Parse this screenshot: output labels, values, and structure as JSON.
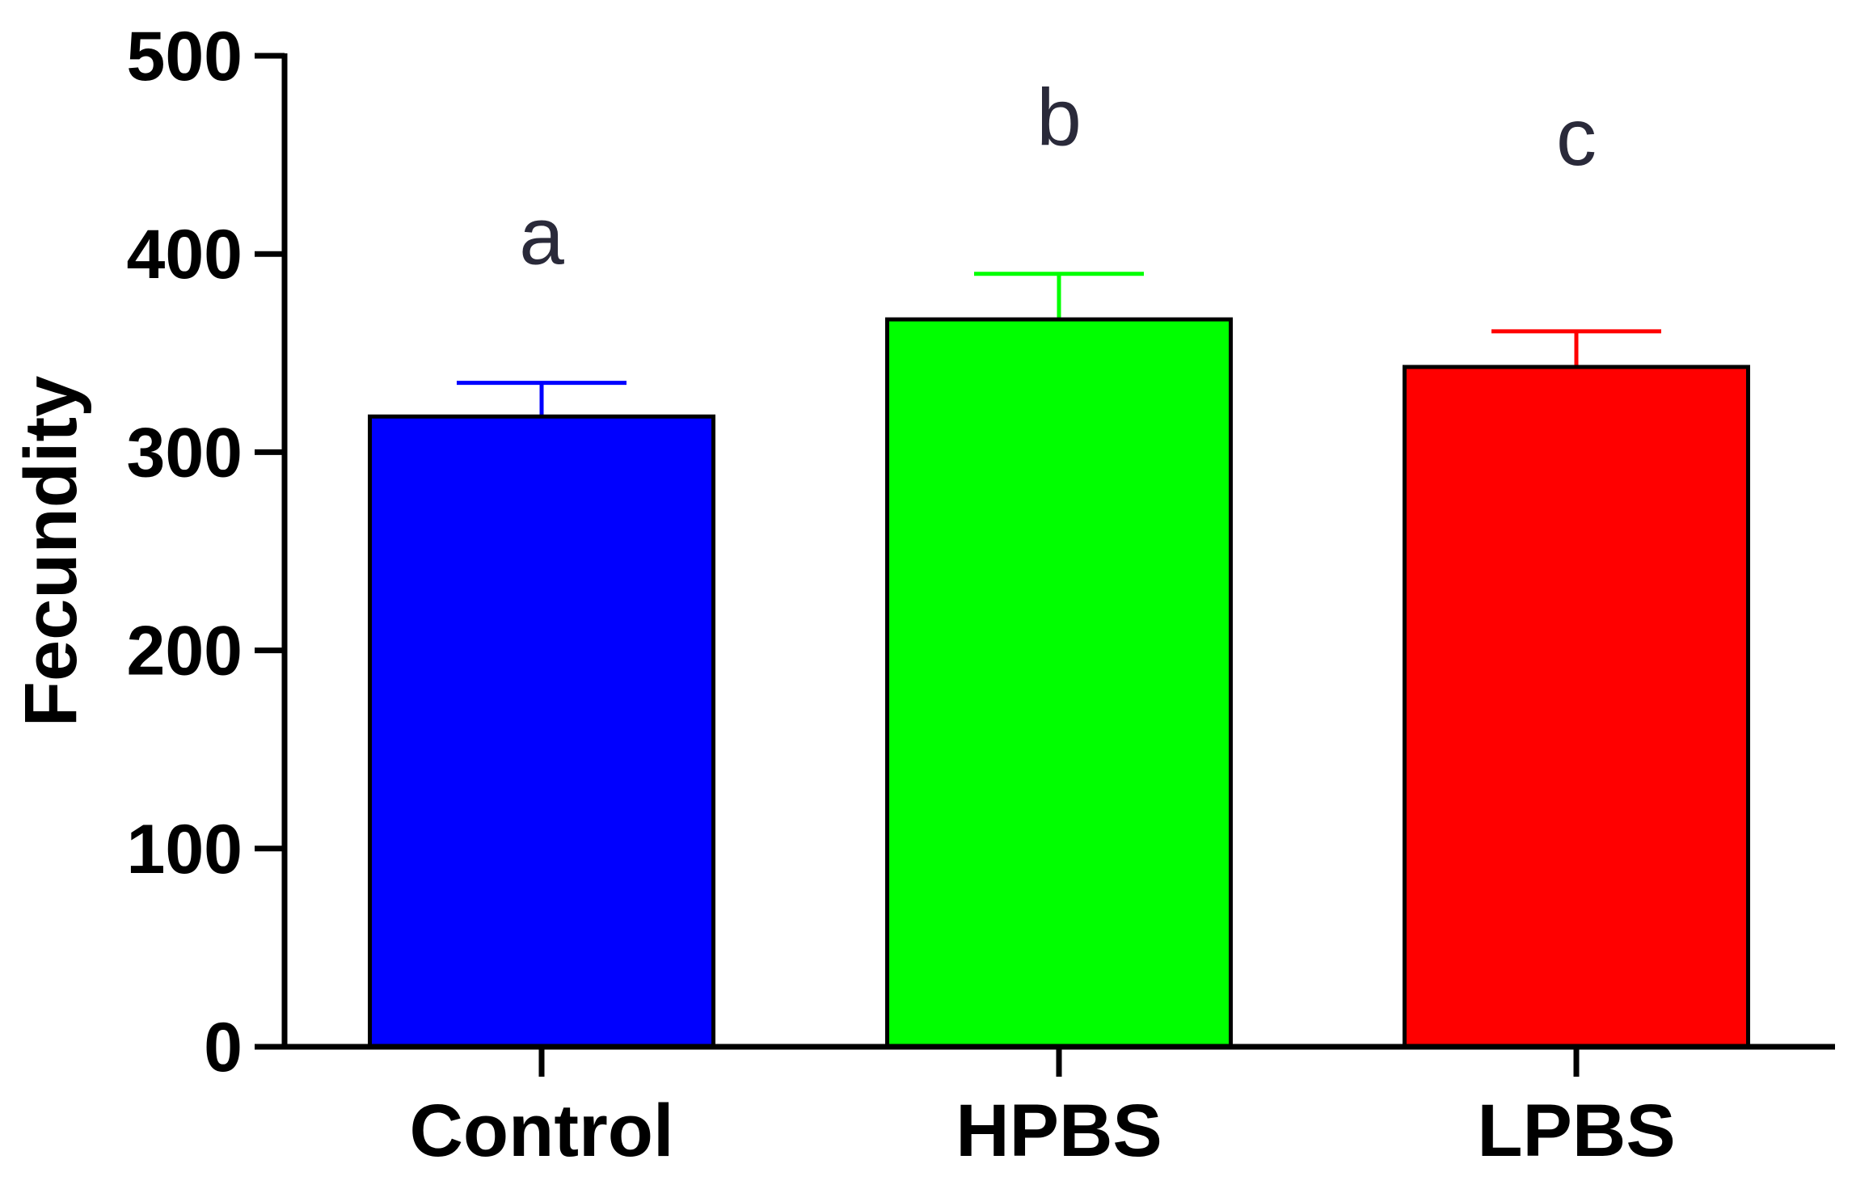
{
  "chart_data": {
    "type": "bar",
    "title": "",
    "xlabel": "",
    "ylabel": "Fecundity",
    "ylim": [
      0,
      500
    ],
    "yticks": [
      0,
      100,
      200,
      300,
      400,
      500
    ],
    "ytick_labels": [
      "0",
      "100",
      "200",
      "300",
      "400",
      "500"
    ],
    "grid": false,
    "legend": "none",
    "categories": [
      "Control",
      "HPBS",
      "LPBS"
    ],
    "values": [
      318,
      367,
      343
    ],
    "error_upper": [
      335,
      390,
      361
    ],
    "colors": [
      "#0000ff",
      "#00ff00",
      "#ff0000"
    ],
    "significance_letters": [
      "a",
      "b",
      "c"
    ],
    "significance_letter_values": [
      395,
      455,
      445
    ]
  }
}
